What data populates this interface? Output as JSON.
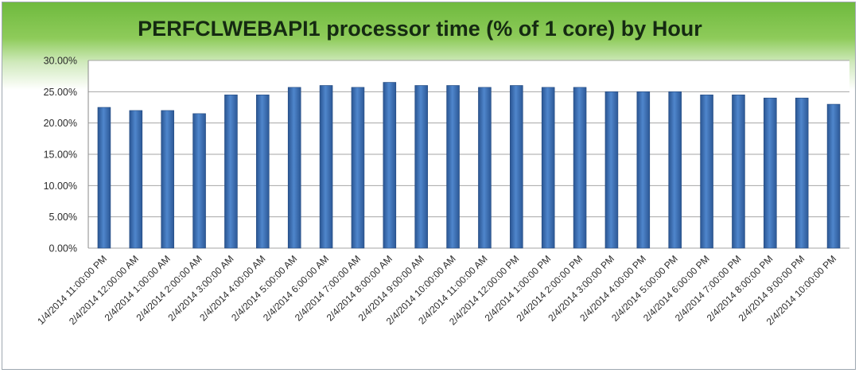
{
  "chart_data": {
    "type": "bar",
    "title": "PERFCLWEBAPI1 processor time (% of 1 core) by Hour",
    "xlabel": "",
    "ylabel": "",
    "ylim": [
      0,
      30
    ],
    "yticks": [
      0,
      5,
      10,
      15,
      20,
      25,
      30
    ],
    "ytick_labels": [
      "0.00%",
      "5.00%",
      "10.00%",
      "15.00%",
      "20.00%",
      "25.00%",
      "30.00%"
    ],
    "grid": true,
    "legend": "none",
    "bar_color": "#3f74b8",
    "categories": [
      "1/4/2014 11:00:00 PM",
      "2/4/2014 12:00:00 AM",
      "2/4/2014 1:00:00 AM",
      "2/4/2014 2:00:00 AM",
      "2/4/2014 3:00:00 AM",
      "2/4/2014 4:00:00 AM",
      "2/4/2014 5:00:00 AM",
      "2/4/2014 6:00:00 AM",
      "2/4/2014 7:00:00 AM",
      "2/4/2014 8:00:00 AM",
      "2/4/2014 9:00:00 AM",
      "2/4/2014 10:00:00 AM",
      "2/4/2014 11:00:00 AM",
      "2/4/2014 12:00:00 PM",
      "2/4/2014 1:00:00 PM",
      "2/4/2014 2:00:00 PM",
      "2/4/2014 3:00:00 PM",
      "2/4/2014 4:00:00 PM",
      "2/4/2014 5:00:00 PM",
      "2/4/2014 6:00:00 PM",
      "2/4/2014 7:00:00 PM",
      "2/4/2014 8:00:00 PM",
      "2/4/2014 9:00:00 PM",
      "2/4/2014 10:00:00 PM"
    ],
    "values": [
      22.5,
      22.0,
      22.0,
      21.5,
      24.5,
      24.5,
      25.7,
      26.0,
      25.7,
      26.5,
      26.0,
      26.0,
      25.7,
      26.0,
      25.7,
      25.7,
      25.0,
      25.0,
      25.0,
      24.5,
      24.5,
      24.0,
      24.0,
      23.0
    ]
  }
}
